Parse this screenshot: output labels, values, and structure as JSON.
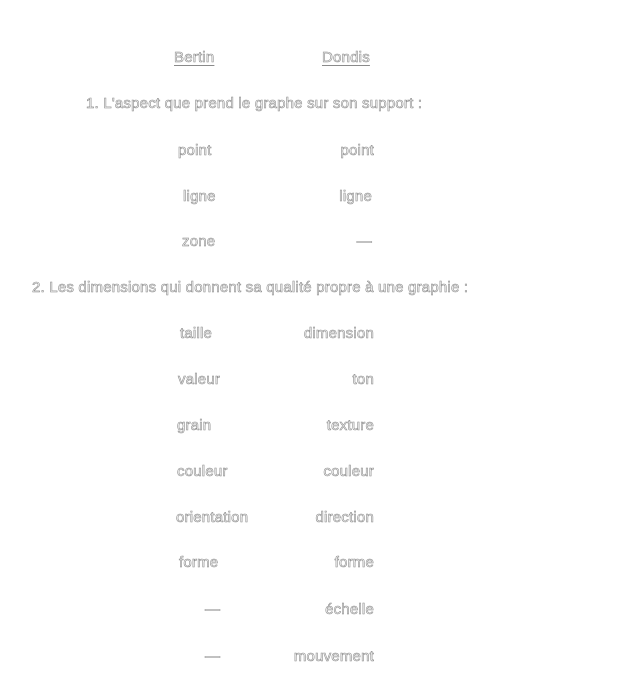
{
  "headers": {
    "left": "Bertin",
    "right": "Dondis"
  },
  "section1": {
    "title": "1. L'aspect que prend le graphe sur son support :",
    "rows": [
      {
        "left": "point",
        "right": "point"
      },
      {
        "left": "ligne",
        "right": "ligne"
      },
      {
        "left": "zone",
        "right": "—"
      }
    ]
  },
  "section2": {
    "title": "2. Les dimensions qui donnent sa qualité propre à une graphie :",
    "rows": [
      {
        "left": "taille",
        "right": "dimension"
      },
      {
        "left": "valeur",
        "right": "ton"
      },
      {
        "left": "grain",
        "right": "texture"
      },
      {
        "left": "couleur",
        "right": "couleur"
      },
      {
        "left": "orientation",
        "right": "direction"
      },
      {
        "left": "forme",
        "right": "forme"
      },
      {
        "left": "—",
        "right": "échelle"
      },
      {
        "left": "—",
        "right": "mouvement"
      }
    ]
  }
}
